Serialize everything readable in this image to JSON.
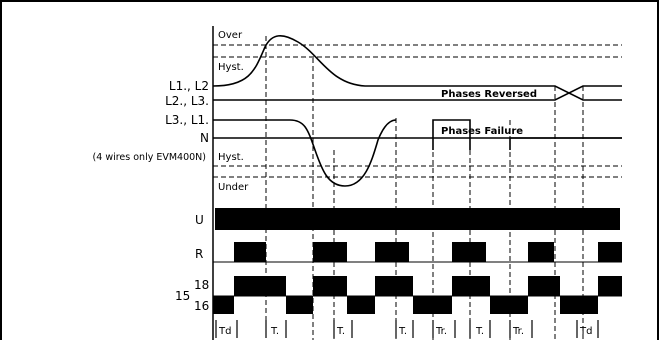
{
  "zones": {
    "over": "Over",
    "hyst_top": "Hyst.",
    "hyst_bottom": "Hyst.",
    "under": "Under"
  },
  "phases": {
    "l1_l2": "L1., L2",
    "l2_l3": "L2., L3.",
    "l3_l1": "L3., L1.",
    "neutral": "N",
    "neutral_note": "(4 wires only EVM400N)"
  },
  "annotations": {
    "phases_reversed": "Phases Reversed",
    "phases_failure": "Phases Failure"
  },
  "outputs": {
    "supply": "U",
    "relay": "R",
    "terminal_group": "15",
    "contact_18": "18",
    "contact_16": "16"
  },
  "timing_labels": [
    "Td",
    "T.",
    "T.",
    "T.",
    "Tr.",
    "T.",
    "Tr.",
    "Td"
  ]
}
